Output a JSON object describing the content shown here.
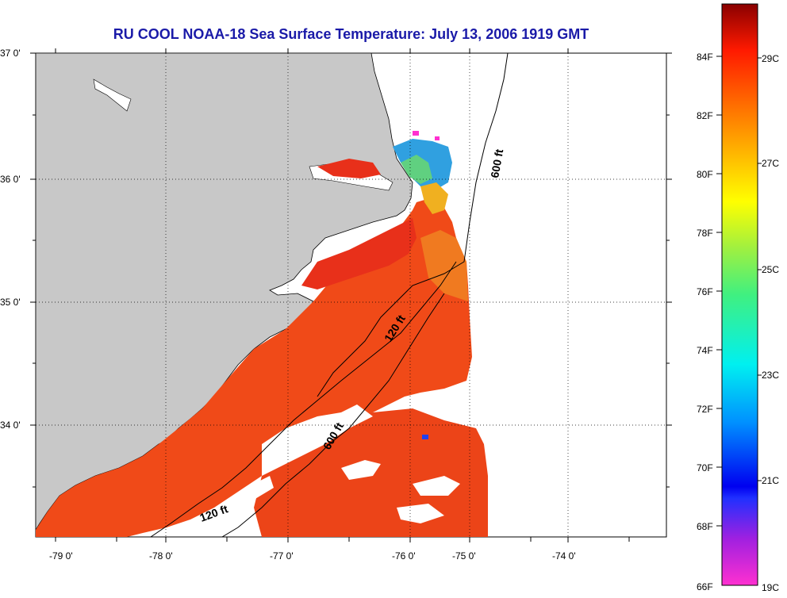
{
  "title": "RU COOL  NOAA-18  Sea Surface Temperature:  July 13, 2006 1919 GMT",
  "map": {
    "lat_labels": [
      "37 0'",
      "36 0'",
      "35 0'",
      "34 0'"
    ],
    "lon_labels": [
      "-79 0'",
      "-78 0'",
      "-77 0'",
      "-76 0'",
      "-75 0'",
      "-74 0'"
    ],
    "contours": [
      {
        "label": "600 ft",
        "depth_ft": 600
      },
      {
        "label": "120 ft",
        "depth_ft": 120
      },
      {
        "label": "600 ft",
        "depth_ft": 600
      },
      {
        "label": "120 ft",
        "depth_ft": 120
      }
    ],
    "colors": {
      "land": "#c8c8c8",
      "water_nodata": "#ffffff",
      "sst_warm": "#f04a18",
      "sst_hot": "#e8281a",
      "sst_mid": "#f07a20"
    }
  },
  "colorbar": {
    "f_labels": [
      "84F",
      "82F",
      "80F",
      "78F",
      "76F",
      "74F",
      "72F",
      "70F",
      "68F",
      "66F"
    ],
    "c_labels": [
      "29C",
      "27C",
      "25C",
      "23C",
      "21C",
      "19C"
    ],
    "range_f": [
      66,
      86
    ]
  }
}
